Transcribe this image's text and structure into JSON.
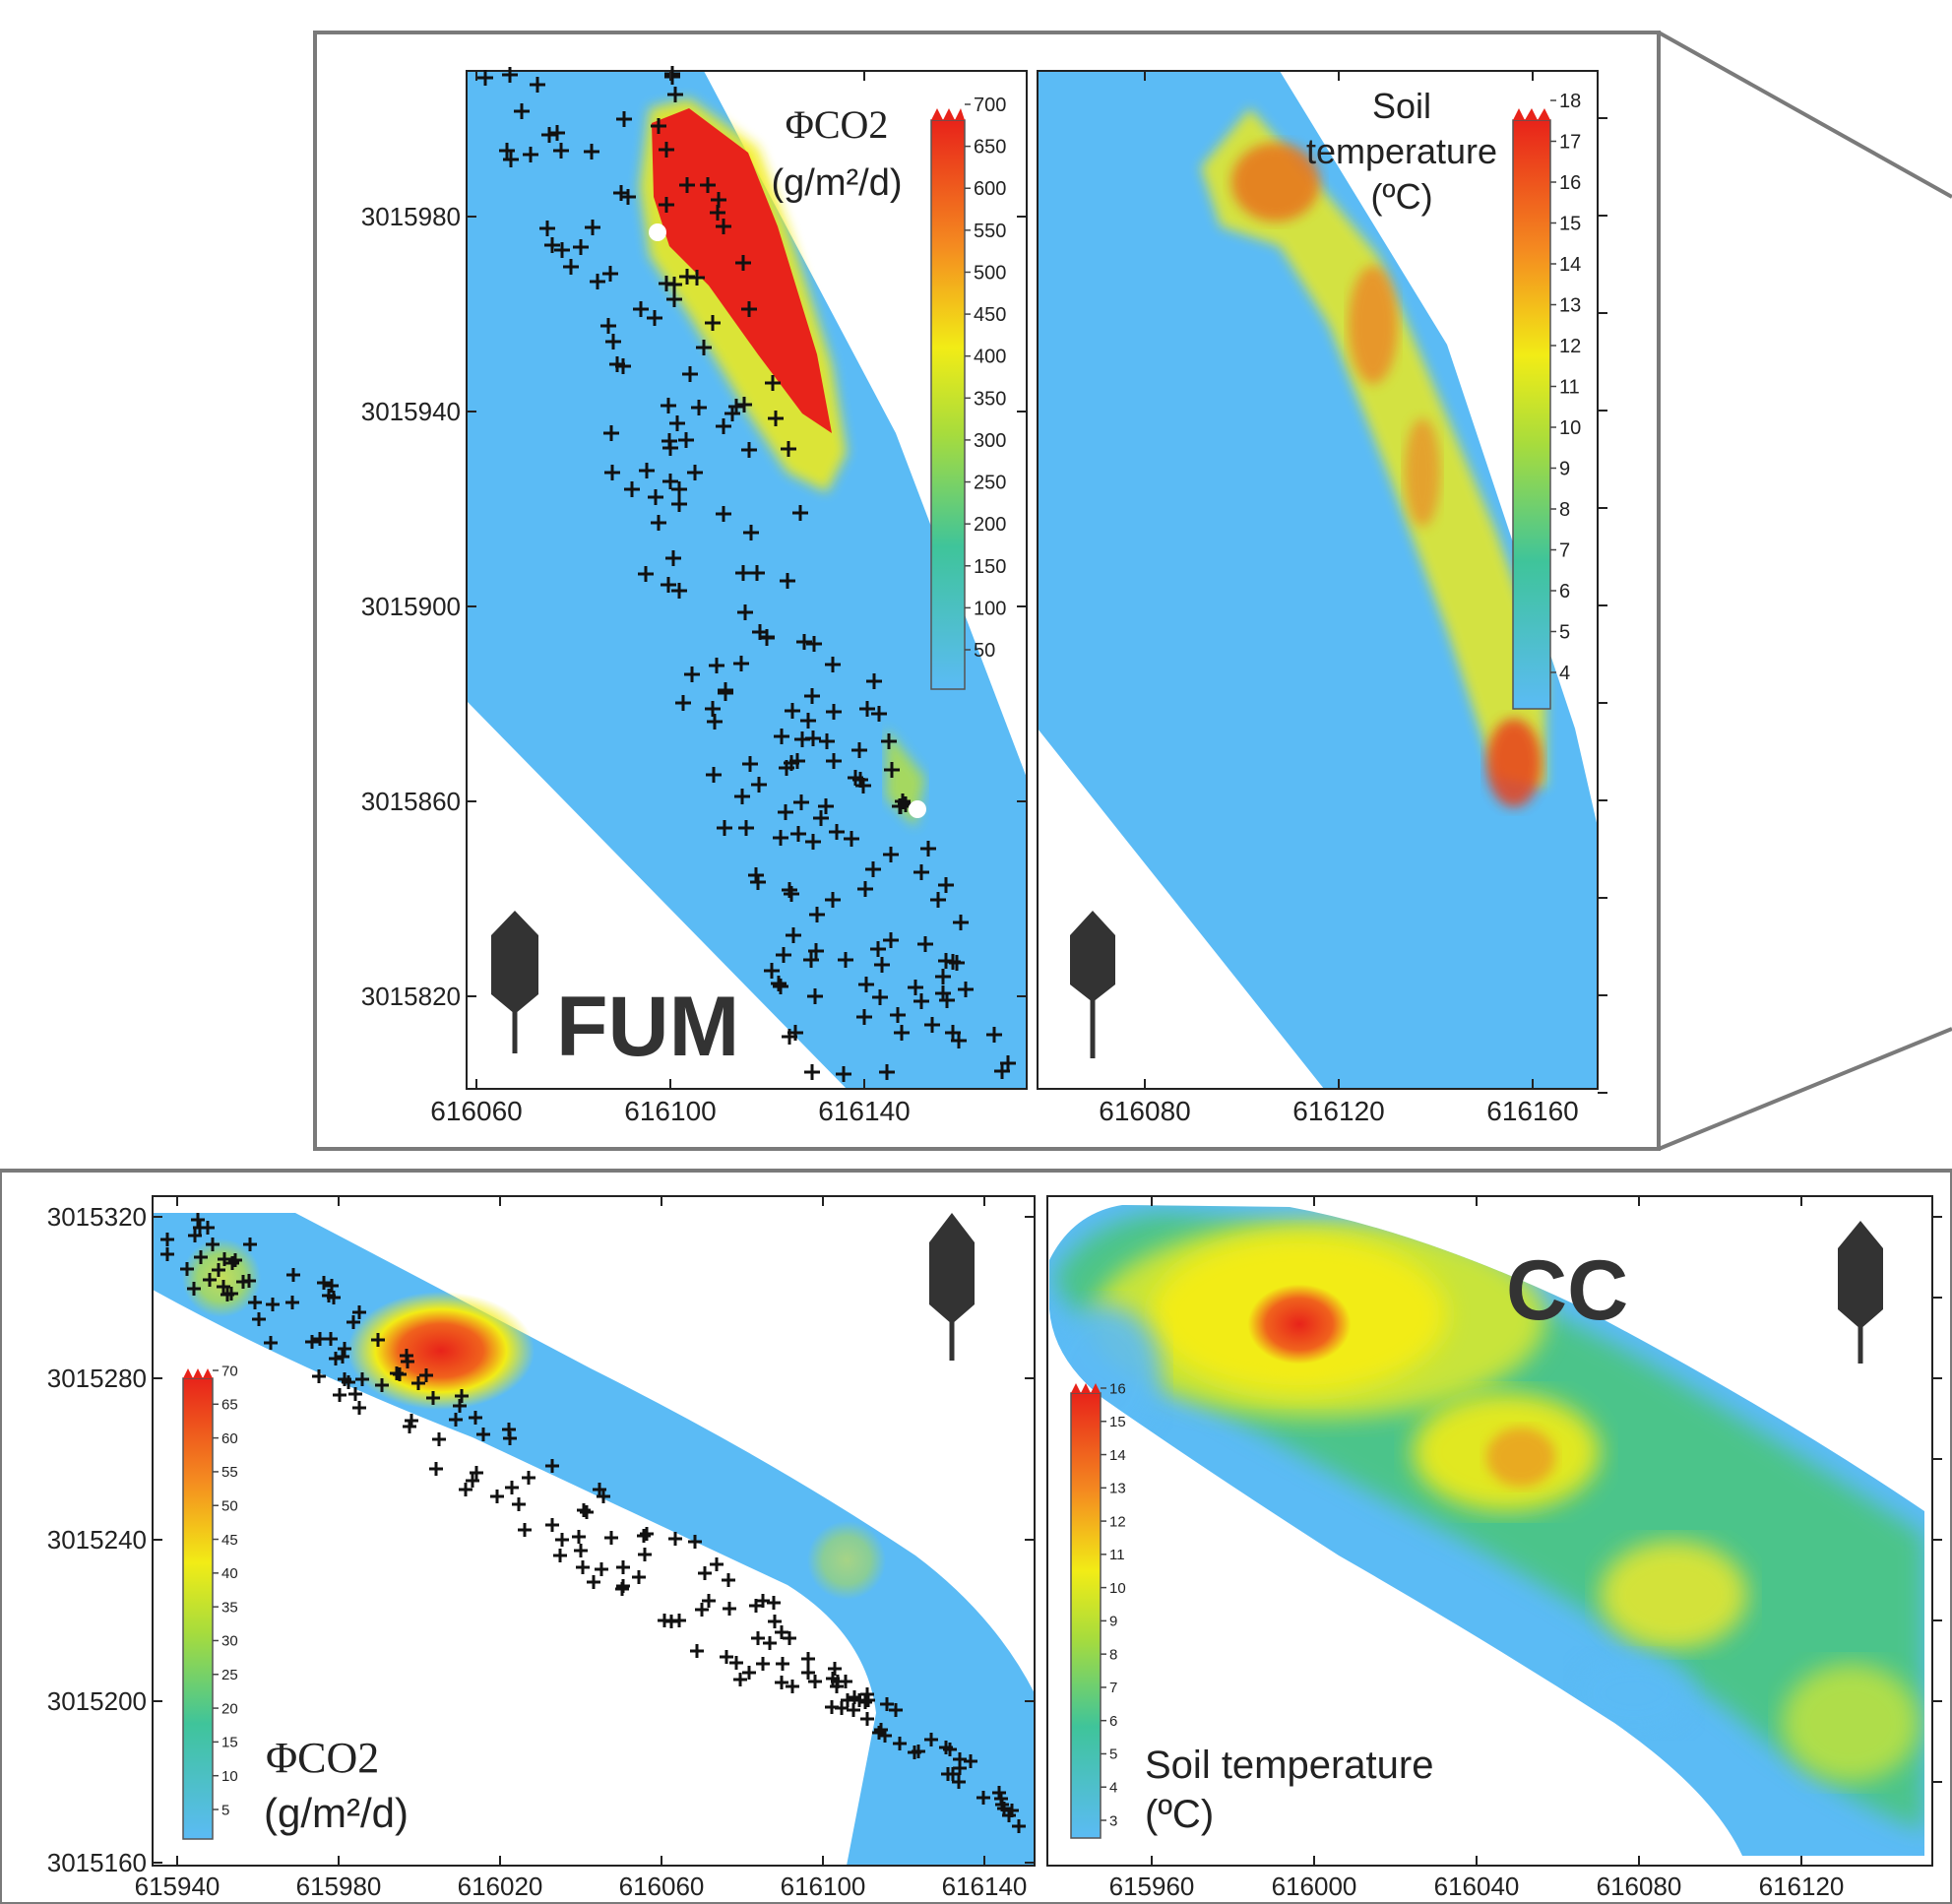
{
  "colors": {
    "background": "#5bbbf5",
    "hot": "#e8231a",
    "orange": "#f48a20",
    "yellow": "#f2ec16",
    "green": "#44c07a",
    "frame": "#7a7a7a",
    "crosses": "#111111"
  },
  "top": {
    "left_map": {
      "label": "FUM",
      "legend_title": [
        "ΦCO2",
        "(g/m²/d)"
      ],
      "colorbar_ticks": [
        "700",
        "650",
        "600",
        "550",
        "500",
        "450",
        "400",
        "350",
        "300",
        "250",
        "200",
        "150",
        "100",
        "50"
      ],
      "y_ticks": [
        "3015980",
        "3015940",
        "3015900",
        "3015860",
        "3015820"
      ],
      "x_ticks": [
        "616060",
        "616100",
        "616140"
      ],
      "north_arrow_icon": "north-arrow-icon"
    },
    "right_map": {
      "legend_title": [
        "Soil",
        "temperature",
        "(ºC)"
      ],
      "colorbar_ticks": [
        "18",
        "17",
        "16",
        "15",
        "14",
        "13",
        "12",
        "11",
        "10",
        "9",
        "8",
        "7",
        "6",
        "5",
        "4"
      ],
      "x_ticks": [
        "616080",
        "616120",
        "616160"
      ],
      "north_arrow_icon": "north-arrow-icon"
    }
  },
  "bottom": {
    "left_map": {
      "legend_title": [
        "ΦCO2",
        "(g/m²/d)"
      ],
      "colorbar_ticks": [
        "70",
        "65",
        "60",
        "55",
        "50",
        "45",
        "40",
        "35",
        "30",
        "25",
        "20",
        "15",
        "10",
        "5"
      ],
      "y_ticks": [
        "3015320",
        "3015280",
        "3015240",
        "3015200",
        "3015160"
      ],
      "x_ticks": [
        "615940",
        "615980",
        "616020",
        "616060",
        "616100",
        "616140"
      ],
      "north_arrow_icon": "north-arrow-icon"
    },
    "right_map": {
      "label": "CC",
      "legend_title": [
        "Soil temperature",
        "(ºC)"
      ],
      "colorbar_ticks": [
        "16",
        "15",
        "14",
        "13",
        "12",
        "11",
        "10",
        "9",
        "8",
        "7",
        "6",
        "5",
        "4",
        "3"
      ],
      "x_ticks": [
        "615960",
        "616000",
        "616040",
        "616080",
        "616120"
      ],
      "north_arrow_icon": "north-arrow-icon"
    }
  }
}
